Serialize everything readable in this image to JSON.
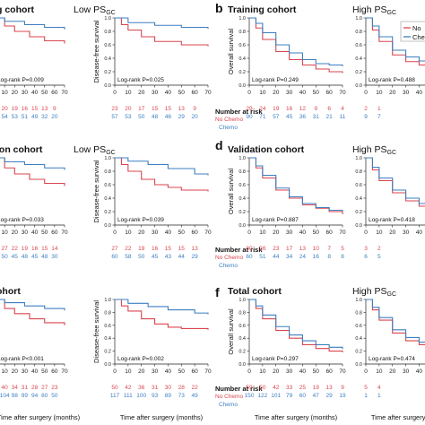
{
  "colors": {
    "no_chemo": "#d9464f",
    "chemo": "#3d7fc1",
    "axis": "#222222"
  },
  "labels": {
    "os": "Overall survival",
    "dfs": "Disease-free survival",
    "x_label": "Time after surgery (months)",
    "risk_title": "Number at risk",
    "no_chemo": "No Chemo",
    "chemo": "Chemo",
    "legend_no": "No",
    "legend_chemo": "Che"
  },
  "chart_data": [
    {
      "id": "a-os",
      "type": "line",
      "title": "g cohort",
      "ylabel": "",
      "xlim": [
        0,
        70
      ],
      "ylim": [
        0,
        1.0
      ],
      "xticks": [
        0,
        10,
        20,
        30,
        40,
        50,
        60,
        70
      ],
      "yticks": [],
      "series": [
        {
          "name": "No Chemo",
          "x": [
            0,
            10,
            20,
            35,
            50,
            70
          ],
          "y": [
            1.0,
            0.88,
            0.8,
            0.72,
            0.66,
            0.62
          ]
        },
        {
          "name": "Chemo",
          "x": [
            0,
            10,
            30,
            50,
            70
          ],
          "y": [
            1.0,
            0.95,
            0.9,
            0.86,
            0.83
          ]
        }
      ],
      "pvalue": "Log-rank P=0.009",
      "risk": {
        "No Chemo": [
          "29",
          "20",
          "19",
          "16",
          "15",
          "13",
          "9"
        ],
        "Chemo": [
          "57",
          "54",
          "53",
          "51",
          "49",
          "32",
          "20"
        ]
      }
    },
    {
      "id": "a-dfs",
      "type": "line",
      "title": "Low PSGC",
      "ylabel": "Disease-free survival",
      "xlim": [
        0,
        70
      ],
      "ylim": [
        0,
        1.0
      ],
      "xticks": [
        0,
        10,
        20,
        30,
        40,
        50,
        60,
        70
      ],
      "yticks": [
        "0.0",
        "0.2",
        "0.4",
        "0.6",
        "0.8",
        "1.0"
      ],
      "series": [
        {
          "name": "No Chemo",
          "x": [
            0,
            5,
            10,
            20,
            30,
            50,
            70
          ],
          "y": [
            1.0,
            0.9,
            0.82,
            0.72,
            0.65,
            0.6,
            0.58
          ]
        },
        {
          "name": "Chemo",
          "x": [
            0,
            10,
            30,
            50,
            70
          ],
          "y": [
            1.0,
            0.93,
            0.89,
            0.86,
            0.84
          ]
        }
      ],
      "pvalue": "Log-rank P=0.025",
      "risk": {
        "No Chemo": [
          "23",
          "20",
          "17",
          "15",
          "15",
          "13",
          "9"
        ],
        "Chemo": [
          "57",
          "53",
          "50",
          "48",
          "46",
          "29",
          "20"
        ]
      }
    },
    {
      "id": "b-os",
      "type": "line",
      "title": "Training cohort",
      "ylabel": "Overall survival",
      "xlim": [
        0,
        70
      ],
      "ylim": [
        0,
        1.0
      ],
      "xticks": [
        0,
        10,
        20,
        30,
        40,
        50,
        60,
        70
      ],
      "yticks": [
        "0.0",
        "0.2",
        "0.4",
        "0.6",
        "0.8",
        "1.0"
      ],
      "series": [
        {
          "name": "No Chemo",
          "x": [
            0,
            5,
            10,
            20,
            30,
            40,
            50,
            60,
            70
          ],
          "y": [
            1.0,
            0.85,
            0.68,
            0.5,
            0.38,
            0.3,
            0.24,
            0.2,
            0.18
          ]
        },
        {
          "name": "Chemo",
          "x": [
            0,
            5,
            10,
            20,
            30,
            40,
            50,
            60,
            70
          ],
          "y": [
            1.0,
            0.92,
            0.78,
            0.6,
            0.48,
            0.38,
            0.32,
            0.3,
            0.28
          ]
        }
      ],
      "pvalue": "Log-rank P=0.249",
      "risk": {
        "No Chemo": [
          "29",
          "24",
          "19",
          "16",
          "12",
          "9",
          "6",
          "4"
        ],
        "Chemo": [
          "90",
          "71",
          "57",
          "45",
          "36",
          "31",
          "21",
          "11"
        ]
      }
    },
    {
      "id": "b-dfs",
      "type": "line",
      "title": "High PSGC",
      "ylabel": "",
      "xlim": [
        0,
        70
      ],
      "ylim": [
        0,
        1.0
      ],
      "xticks": [
        0,
        10,
        20,
        30,
        40,
        50,
        60,
        70
      ],
      "yticks": [
        "0.0",
        "0.2",
        "0.4",
        "0.6",
        "0.8",
        "1.0"
      ],
      "series": [
        {
          "name": "No Chemo",
          "x": [
            0,
            5,
            10,
            20,
            30,
            40,
            70
          ],
          "y": [
            1.0,
            0.82,
            0.65,
            0.45,
            0.35,
            0.3,
            0.25
          ]
        },
        {
          "name": "Chemo",
          "x": [
            0,
            5,
            10,
            20,
            30,
            40,
            70
          ],
          "y": [
            1.0,
            0.88,
            0.72,
            0.52,
            0.42,
            0.36,
            0.32
          ]
        }
      ],
      "pvalue": "Log-rank P=0.488",
      "risk": {
        "No Chemo": [
          "2",
          "1"
        ],
        "Chemo": [
          "9",
          "7"
        ]
      }
    },
    {
      "id": "c-os",
      "type": "line",
      "title": "ion cohort",
      "ylabel": "",
      "xlim": [
        0,
        70
      ],
      "ylim": [
        0,
        1.0
      ],
      "xticks": [
        0,
        10,
        20,
        30,
        40,
        50,
        60,
        70
      ],
      "yticks": [],
      "series": [
        {
          "name": "No Chemo",
          "x": [
            0,
            10,
            20,
            35,
            50,
            70
          ],
          "y": [
            1.0,
            0.85,
            0.76,
            0.68,
            0.62,
            0.58
          ]
        },
        {
          "name": "Chemo",
          "x": [
            0,
            10,
            30,
            50,
            70
          ],
          "y": [
            1.0,
            0.94,
            0.9,
            0.85,
            0.82
          ]
        }
      ],
      "pvalue": "Log-rank P=0.033",
      "risk": {
        "No Chemo": [
          "28",
          "27",
          "22",
          "19",
          "16",
          "15",
          "14"
        ],
        "Chemo": [
          "59",
          "50",
          "45",
          "48",
          "45",
          "48",
          "30"
        ]
      }
    },
    {
      "id": "c-dfs",
      "type": "line",
      "title": "Low PSGC",
      "ylabel": "Disease-free survival",
      "xlim": [
        0,
        70
      ],
      "ylim": [
        0,
        1.0
      ],
      "xticks": [
        0,
        10,
        20,
        30,
        40,
        50,
        60,
        70
      ],
      "yticks": [
        "0.0",
        "0.2",
        "0.4",
        "0.6",
        "0.8",
        "1.0"
      ],
      "series": [
        {
          "name": "No Chemo",
          "x": [
            0,
            5,
            10,
            20,
            30,
            40,
            50,
            70
          ],
          "y": [
            1.0,
            0.9,
            0.8,
            0.68,
            0.6,
            0.56,
            0.52,
            0.5
          ]
        },
        {
          "name": "Chemo",
          "x": [
            0,
            10,
            25,
            40,
            60,
            70
          ],
          "y": [
            1.0,
            0.95,
            0.9,
            0.84,
            0.76,
            0.74
          ]
        }
      ],
      "pvalue": "Log-rank P=0.039",
      "risk": {
        "No Chemo": [
          "27",
          "22",
          "19",
          "16",
          "15",
          "15",
          "13"
        ],
        "Chemo": [
          "60",
          "58",
          "50",
          "45",
          "43",
          "44",
          "29"
        ]
      }
    },
    {
      "id": "d-os",
      "type": "line",
      "title": "Validation cohort",
      "ylabel": "Overall survival",
      "xlim": [
        0,
        70
      ],
      "ylim": [
        0,
        1.0
      ],
      "xticks": [
        0,
        10,
        20,
        30,
        40,
        50,
        60,
        70
      ],
      "yticks": [
        "0.0",
        "0.2",
        "0.4",
        "0.6",
        "0.8",
        "1.0"
      ],
      "series": [
        {
          "name": "No Chemo",
          "x": [
            0,
            5,
            10,
            20,
            30,
            40,
            50,
            60,
            70
          ],
          "y": [
            1.0,
            0.85,
            0.7,
            0.52,
            0.4,
            0.3,
            0.25,
            0.2,
            0.16
          ]
        },
        {
          "name": "Chemo",
          "x": [
            0,
            5,
            10,
            20,
            30,
            40,
            50,
            60,
            70
          ],
          "y": [
            1.0,
            0.88,
            0.74,
            0.55,
            0.42,
            0.32,
            0.26,
            0.22,
            0.2
          ]
        }
      ],
      "pvalue": "Log-rank P=0.887",
      "risk": {
        "No Chemo": [
          "30",
          "26",
          "23",
          "17",
          "13",
          "10",
          "7",
          "5"
        ],
        "Chemo": [
          "60",
          "51",
          "44",
          "34",
          "24",
          "16",
          "8",
          "8"
        ]
      }
    },
    {
      "id": "d-dfs",
      "type": "line",
      "title": "High PSGC",
      "ylabel": "",
      "xlim": [
        0,
        70
      ],
      "ylim": [
        0,
        1.0
      ],
      "xticks": [
        0,
        10,
        20,
        30,
        40,
        50,
        60,
        70
      ],
      "yticks": [
        "0.0",
        "0.2",
        "0.4",
        "0.6",
        "0.8",
        "1.0"
      ],
      "series": [
        {
          "name": "No Chemo",
          "x": [
            0,
            5,
            10,
            20,
            30,
            40,
            70
          ],
          "y": [
            1.0,
            0.82,
            0.66,
            0.48,
            0.36,
            0.28,
            0.2
          ]
        },
        {
          "name": "Chemo",
          "x": [
            0,
            5,
            10,
            20,
            30,
            40,
            70
          ],
          "y": [
            1.0,
            0.86,
            0.7,
            0.52,
            0.4,
            0.32,
            0.22
          ]
        }
      ],
      "pvalue": "Log-rank P=0.418",
      "risk": {
        "No Chemo": [
          "3",
          "2"
        ],
        "Chemo": [
          "6",
          "5"
        ]
      }
    },
    {
      "id": "e-os",
      "type": "line",
      "title": "ohort",
      "ylabel": "",
      "xlim": [
        0,
        70
      ],
      "ylim": [
        0,
        1.0
      ],
      "xticks": [
        0,
        10,
        20,
        30,
        40,
        50,
        60,
        70
      ],
      "yticks": [],
      "series": [
        {
          "name": "No Chemo",
          "x": [
            0,
            10,
            20,
            35,
            50,
            70
          ],
          "y": [
            1.0,
            0.86,
            0.78,
            0.7,
            0.64,
            0.6
          ]
        },
        {
          "name": "Chemo",
          "x": [
            0,
            10,
            30,
            50,
            70
          ],
          "y": [
            1.0,
            0.95,
            0.9,
            0.86,
            0.83
          ]
        }
      ],
      "pvalue": "Log-rank P<0.001",
      "risk": {
        "No Chemo": [
          "43",
          "40",
          "34",
          "31",
          "28",
          "27",
          "23"
        ],
        "Chemo": [
          "116",
          "104",
          "98",
          "99",
          "94",
          "80",
          "50"
        ]
      }
    },
    {
      "id": "e-dfs",
      "type": "line",
      "title": "",
      "ylabel": "Disease-free survival",
      "xlim": [
        0,
        70
      ],
      "ylim": [
        0,
        1.0
      ],
      "xticks": [
        0,
        10,
        20,
        30,
        40,
        50,
        60,
        70
      ],
      "yticks": [
        "0.0",
        "0.2",
        "0.4",
        "0.6",
        "0.8",
        "1.0"
      ],
      "series": [
        {
          "name": "No Chemo",
          "x": [
            0,
            5,
            10,
            20,
            30,
            40,
            50,
            70
          ],
          "y": [
            1.0,
            0.9,
            0.82,
            0.7,
            0.62,
            0.57,
            0.55,
            0.53
          ]
        },
        {
          "name": "Chemo",
          "x": [
            0,
            10,
            25,
            40,
            60,
            70
          ],
          "y": [
            1.0,
            0.94,
            0.89,
            0.84,
            0.79,
            0.77
          ]
        }
      ],
      "pvalue": "Log-rank P=0.002",
      "risk": {
        "No Chemo": [
          "50",
          "42",
          "36",
          "31",
          "30",
          "28",
          "22"
        ],
        "Chemo": [
          "117",
          "111",
          "100",
          "93",
          "89",
          "73",
          "49"
        ]
      }
    },
    {
      "id": "f-os",
      "type": "line",
      "title": "Total cohort",
      "ylabel": "Overall survival",
      "xlim": [
        0,
        70
      ],
      "ylim": [
        0,
        1.0
      ],
      "xticks": [
        0,
        10,
        20,
        30,
        40,
        50,
        60,
        70
      ],
      "yticks": [
        "0.0",
        "0.2",
        "0.4",
        "0.6",
        "0.8",
        "1.0"
      ],
      "series": [
        {
          "name": "No Chemo",
          "x": [
            0,
            5,
            10,
            20,
            30,
            40,
            50,
            60,
            70
          ],
          "y": [
            1.0,
            0.86,
            0.7,
            0.52,
            0.4,
            0.3,
            0.24,
            0.2,
            0.18
          ]
        },
        {
          "name": "Chemo",
          "x": [
            0,
            5,
            10,
            20,
            30,
            40,
            50,
            60,
            70
          ],
          "y": [
            1.0,
            0.9,
            0.76,
            0.58,
            0.45,
            0.36,
            0.3,
            0.26,
            0.23
          ]
        }
      ],
      "pvalue": "Log-rank P=0.297",
      "risk": {
        "No Chemo": [
          "59",
          "50",
          "42",
          "33",
          "25",
          "19",
          "13",
          "9"
        ],
        "Chemo": [
          "150",
          "122",
          "101",
          "79",
          "60",
          "47",
          "29",
          "19"
        ]
      }
    },
    {
      "id": "f-dfs",
      "type": "line",
      "title": "High PSGC",
      "ylabel": "",
      "xlim": [
        0,
        70
      ],
      "ylim": [
        0,
        1.0
      ],
      "xticks": [
        0,
        10,
        20,
        30,
        40,
        50,
        60,
        70
      ],
      "yticks": [
        "0.0",
        "0.2",
        "0.4",
        "0.6",
        "0.8",
        "1.0"
      ],
      "series": [
        {
          "name": "No Chemo",
          "x": [
            0,
            5,
            10,
            20,
            30,
            40,
            70
          ],
          "y": [
            1.0,
            0.84,
            0.68,
            0.48,
            0.36,
            0.3,
            0.24
          ]
        },
        {
          "name": "Chemo",
          "x": [
            0,
            5,
            10,
            20,
            30,
            40,
            70
          ],
          "y": [
            1.0,
            0.88,
            0.72,
            0.53,
            0.41,
            0.34,
            0.27
          ]
        }
      ],
      "pvalue": "Log-rank P=0.474",
      "risk": {
        "No Chemo": [
          "5",
          "4"
        ],
        "Chemo": [
          "1",
          "1"
        ]
      }
    }
  ],
  "panel_letters": {
    "b": "b",
    "d": "d",
    "f": "f"
  }
}
